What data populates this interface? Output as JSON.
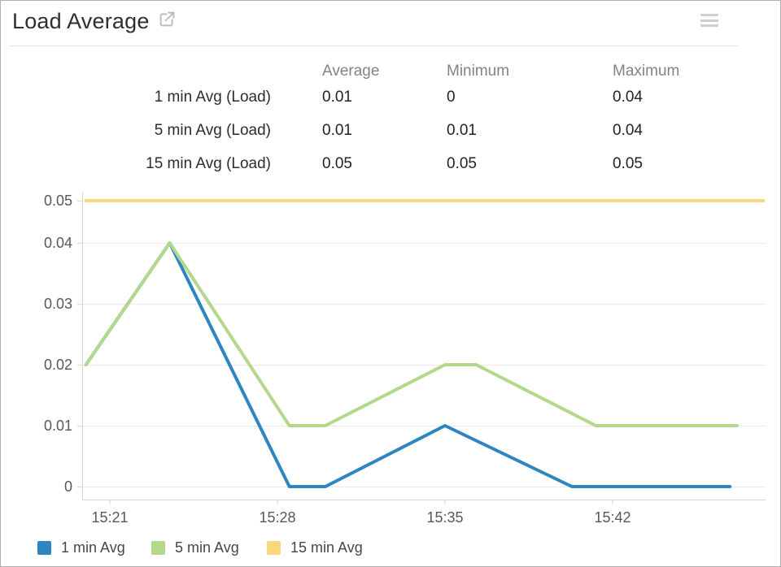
{
  "header": {
    "title": "Load Average",
    "icons": [
      "external-link-icon",
      "menu-icon"
    ]
  },
  "stats": {
    "columns": [
      "Average",
      "Minimum",
      "Maximum"
    ],
    "rows": [
      {
        "label": "1 min Avg (Load)",
        "average": "0.01",
        "minimum": "0",
        "maximum": "0.04"
      },
      {
        "label": "5 min Avg (Load)",
        "average": "0.01",
        "minimum": "0.01",
        "maximum": "0.04"
      },
      {
        "label": "15 min Avg (Load)",
        "average": "0.05",
        "minimum": "0.05",
        "maximum": "0.05"
      }
    ]
  },
  "chart_data": {
    "type": "line",
    "x_unit": "time of day (numbers = minutes after 15:00)",
    "xlim_minutes": [
      19.8,
      48.4
    ],
    "ylim": [
      0,
      0.05
    ],
    "grid": true,
    "legend_position": "bottom-left",
    "x_ticks": [
      {
        "t": 21,
        "label": "15:21"
      },
      {
        "t": 28,
        "label": "15:28"
      },
      {
        "t": 35,
        "label": "15:35"
      },
      {
        "t": 42,
        "label": "15:42"
      }
    ],
    "y_ticks": [
      {
        "v": 0,
        "label": "0"
      },
      {
        "v": 0.01,
        "label": "0.01"
      },
      {
        "v": 0.02,
        "label": "0.02"
      },
      {
        "v": 0.03,
        "label": "0.03"
      },
      {
        "v": 0.04,
        "label": "0.04"
      },
      {
        "v": 0.05,
        "label": "0.05"
      }
    ],
    "series": [
      {
        "name": "1 min Avg",
        "color": "#2e86c1",
        "points": [
          [
            20,
            0.02
          ],
          [
            23.5,
            0.04
          ],
          [
            28.5,
            0
          ],
          [
            30,
            0
          ],
          [
            35,
            0.01
          ],
          [
            40.3,
            0
          ],
          [
            46.9,
            0
          ]
        ]
      },
      {
        "name": "5 min Avg",
        "color": "#b3d88c",
        "points": [
          [
            20,
            0.02
          ],
          [
            23.5,
            0.04
          ],
          [
            28.5,
            0.01
          ],
          [
            30,
            0.01
          ],
          [
            35,
            0.02
          ],
          [
            36.3,
            0.02
          ],
          [
            41.3,
            0.01
          ],
          [
            47.2,
            0.01
          ]
        ]
      },
      {
        "name": "15 min Avg",
        "color": "#f9d77c",
        "points": [
          [
            20,
            0.05
          ],
          [
            48.3,
            0.05
          ]
        ]
      }
    ]
  },
  "legend": {
    "items": [
      {
        "label": "1 min Avg",
        "color": "#2e86c1"
      },
      {
        "label": "5 min Avg",
        "color": "#b3d88c"
      },
      {
        "label": "15 min Avg",
        "color": "#f9d77c"
      }
    ]
  }
}
